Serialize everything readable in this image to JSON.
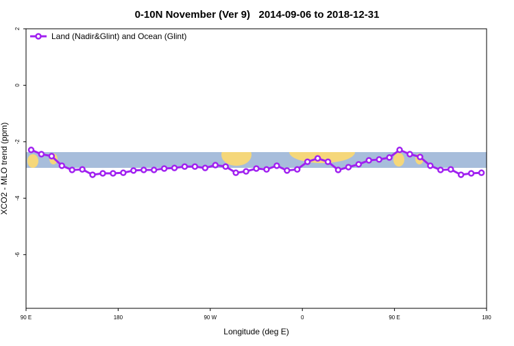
{
  "chart_data": {
    "type": "line",
    "title": "0-10N November (Ver 9)   2014-09-06 to 2018-12-31",
    "x_label": "Longitude (deg E)",
    "y_label": "XCO2 - MLO trend (ppm)",
    "xlim": [
      90,
      540
    ],
    "ylim": [
      -7.9,
      2.0
    ],
    "xticks": [
      {
        "value": 90,
        "label": "90 E"
      },
      {
        "value": 180,
        "label": "180"
      },
      {
        "value": 270,
        "label": "90 W"
      },
      {
        "value": 360,
        "label": "0"
      },
      {
        "value": 450,
        "label": "90 E"
      },
      {
        "value": 540,
        "label": "180"
      }
    ],
    "yticks": [
      2,
      0,
      -2,
      -4,
      -6
    ],
    "legend_position": "top-left",
    "x": [
      95,
      105,
      115,
      125,
      135,
      145,
      155,
      165,
      175,
      185,
      195,
      205,
      215,
      225,
      235,
      245,
      255,
      265,
      275,
      285,
      295,
      305,
      315,
      325,
      335,
      345,
      355,
      365,
      375,
      385,
      395,
      405,
      415,
      425,
      435,
      445,
      455,
      465,
      475,
      485,
      495,
      505,
      515,
      525,
      535
    ],
    "series": [
      {
        "name": "Land (Nadir&Glint) and Ocean (Glint)",
        "color": "#a020f0",
        "values": [
          -2.29,
          -2.44,
          -2.51,
          -2.85,
          -3.0,
          -2.98,
          -3.17,
          -3.12,
          -3.12,
          -3.1,
          -3.02,
          -3.0,
          -3.0,
          -2.95,
          -2.93,
          -2.88,
          -2.88,
          -2.93,
          -2.83,
          -2.88,
          -3.1,
          -3.05,
          -2.95,
          -2.98,
          -2.85,
          -3.02,
          -2.98,
          -2.71,
          -2.59,
          -2.71,
          -3.0,
          -2.9,
          -2.8,
          -2.66,
          -2.63,
          -2.56,
          -2.29,
          -2.44,
          -2.54,
          -2.85,
          -3.0,
          -2.98,
          -3.17,
          -3.12,
          -3.1
        ]
      }
    ]
  }
}
